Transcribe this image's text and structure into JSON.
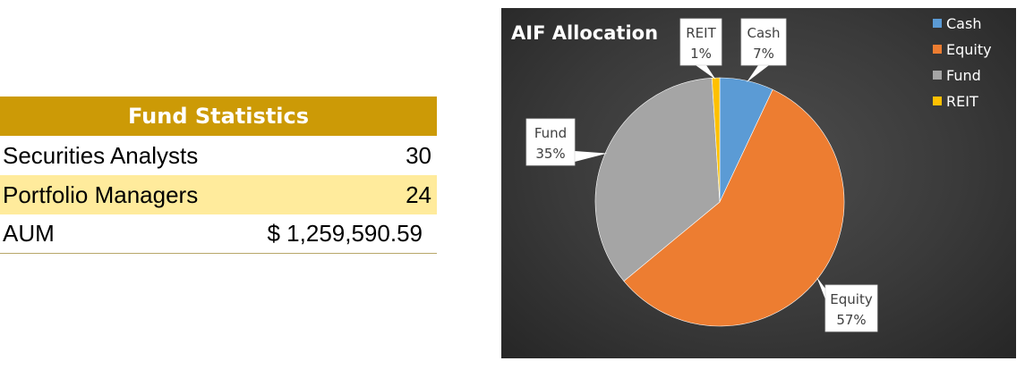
{
  "stats_table": {
    "title": "Fund Statistics",
    "rows": [
      {
        "label": "Securities Analysts",
        "value": "30"
      },
      {
        "label": "Portfolio Managers",
        "value": "24"
      },
      {
        "label": "AUM",
        "value": "$ 1,259,590.59"
      }
    ]
  },
  "colors": {
    "header_gold": "#cc9a06",
    "row_highlight": "#ffeb9c"
  },
  "chart_data": {
    "type": "pie",
    "title": "AIF Allocation",
    "legend_position": "top-right",
    "start_angle_deg": 0,
    "direction": "clockwise",
    "slices": [
      {
        "label": "Cash",
        "value": 7,
        "pct_label": "7%",
        "color": "#5b9bd5"
      },
      {
        "label": "Equity",
        "value": 57,
        "pct_label": "57%",
        "color": "#ed7d31"
      },
      {
        "label": "Fund",
        "value": 35,
        "pct_label": "35%",
        "color": "#a5a5a5"
      },
      {
        "label": "REIT",
        "value": 1,
        "pct_label": "1%",
        "color": "#ffc000"
      }
    ]
  }
}
